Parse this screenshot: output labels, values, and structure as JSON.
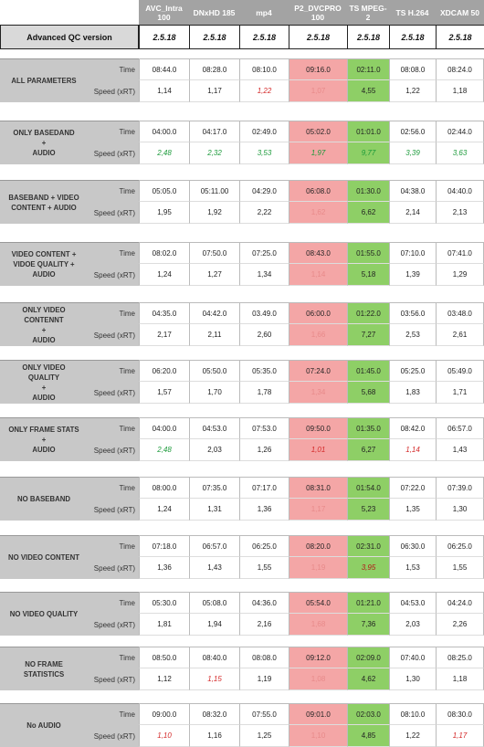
{
  "columns": [
    {
      "label_lines": [
        "AVC_Intra",
        "100"
      ]
    },
    {
      "label_lines": [
        "DNxHD 185"
      ]
    },
    {
      "label_lines": [
        "mp4"
      ]
    },
    {
      "label_lines": [
        "P2_DVCPRO",
        "100"
      ]
    },
    {
      "label_lines": [
        "TS MPEG-",
        "2"
      ]
    },
    {
      "label_lines": [
        "TS H.264"
      ]
    },
    {
      "label_lines": [
        "XDCAM 50"
      ]
    }
  ],
  "qc_label": "Advanced QC version",
  "versions": [
    "2.5.18",
    "2.5.18",
    "2.5.18",
    "2.5.18",
    "2.5.18",
    "2.5.18",
    "2.5.18"
  ],
  "metric_time": "Time",
  "metric_speed": "Speed (xRT)",
  "colors": {
    "red_cell": "#f4a6a6",
    "green_cell": "#8ecf66",
    "red_text": "#d42a2a",
    "green_text": "#1b9a3a"
  },
  "groups": [
    {
      "label_lines": [
        "ALL PARAMETERS"
      ],
      "time": [
        "08:44.0",
        "08:28.0",
        "08:10.0",
        "09:16.0",
        "02:11.0",
        "08:08.0",
        "08:24.0"
      ],
      "speed": [
        "1,14",
        "1,17",
        "1,22",
        "1,07",
        "4,55",
        "1,22",
        "1,18"
      ],
      "speed_text": [
        "",
        "",
        "red",
        "lightred",
        "",
        "",
        ""
      ]
    },
    {
      "label_lines": [
        "ONLY BASEDAND",
        "+",
        "AUDIO"
      ],
      "time": [
        "04:00.0",
        "04:17.0",
        "02:49.0",
        "05:02.0",
        "01:01.0",
        "02:56.0",
        "02:44.0"
      ],
      "speed": [
        "2,48",
        "2,32",
        "3,53",
        "1,97",
        "9,77",
        "3,39",
        "3,63"
      ],
      "speed_text": [
        "green",
        "green",
        "green",
        "green",
        "green",
        "green",
        "green"
      ]
    },
    {
      "label_lines": [
        "BASEBAND + VIDEO",
        "CONTENT + AUDIO"
      ],
      "time": [
        "05:05.0",
        "05:11.00",
        "04:29.0",
        "06:08.0",
        "01:30.0",
        "04:38.0",
        "04:40.0"
      ],
      "speed": [
        "1,95",
        "1,92",
        "2,22",
        "1,62",
        "6,62",
        "2,14",
        "2,13"
      ],
      "speed_text": [
        "",
        "",
        "",
        "lightred",
        "",
        "",
        ""
      ]
    },
    {
      "label_lines": [
        "VIDEO CONTENT +",
        "VIDOE QUALITY +",
        "AUDIO"
      ],
      "time": [
        "08:02.0",
        "07:50.0",
        "07:25.0",
        "08:43.0",
        "01:55.0",
        "07:10.0",
        "07:41.0"
      ],
      "speed": [
        "1,24",
        "1,27",
        "1,34",
        "1,14",
        "5,18",
        "1,39",
        "1,29"
      ],
      "speed_text": [
        "",
        "",
        "",
        "lightred",
        "",
        "",
        ""
      ]
    },
    {
      "label_lines": [
        "ONLY VIDEO",
        "CONTENNT",
        "+",
        "AUDIO"
      ],
      "time": [
        "04:35.0",
        "04:42.0",
        "03.49.0",
        "06:00.0",
        "01:22.0",
        "03:56.0",
        "03:48.0"
      ],
      "speed": [
        "2,17",
        "2,11",
        "2,60",
        "1,66",
        "7,27",
        "2,53",
        "2,61"
      ],
      "speed_text": [
        "",
        "",
        "",
        "lightred",
        "",
        "",
        ""
      ]
    },
    {
      "label_lines": [
        "ONLY VIDEO",
        "QUALITY",
        "+",
        "AUDIO"
      ],
      "time": [
        "06:20.0",
        "05:50.0",
        "05:35.0",
        "07:24.0",
        "01:45.0",
        "05:25.0",
        "05:49.0"
      ],
      "speed": [
        "1,57",
        "1,70",
        "1,78",
        "1,34",
        "5,68",
        "1,83",
        "1,71"
      ],
      "speed_text": [
        "",
        "",
        "",
        "lightred",
        "",
        "",
        ""
      ]
    },
    {
      "label_lines": [
        "ONLY FRAME STATS",
        "+",
        "AUDIO"
      ],
      "time": [
        "04:00.0",
        "04:53.0",
        "07:53.0",
        "09:50.0",
        "01:35.0",
        "08:42.0",
        "06:57.0"
      ],
      "speed": [
        "2,48",
        "2,03",
        "1,26",
        "1,01",
        "6,27",
        "1,14",
        "1,43"
      ],
      "speed_text": [
        "green",
        "",
        "",
        "red",
        "",
        "red",
        ""
      ]
    },
    {
      "label_lines": [
        "NO BASEBAND"
      ],
      "time": [
        "08:00.0",
        "07:35.0",
        "07:17.0",
        "08:31.0",
        "01:54.0",
        "07:22.0",
        "07:39.0"
      ],
      "speed": [
        "1,24",
        "1,31",
        "1,36",
        "1,17",
        "5,23",
        "1,35",
        "1,30"
      ],
      "speed_text": [
        "",
        "",
        "",
        "lightred",
        "",
        "",
        ""
      ]
    },
    {
      "label_lines": [
        "NO VIDEO CONTENT"
      ],
      "time": [
        "07:18.0",
        "06:57.0",
        "06:25.0",
        "08:20.0",
        "02:31.0",
        "06:30.0",
        "06:25.0"
      ],
      "speed": [
        "1,36",
        "1,43",
        "1,55",
        "1,19",
        "3,95",
        "1,53",
        "1,55"
      ],
      "speed_text": [
        "",
        "",
        "",
        "lightred",
        "darkred",
        "",
        ""
      ]
    },
    {
      "label_lines": [
        "NO VIDEO QUALITY"
      ],
      "time": [
        "05:30.0",
        "05:08.0",
        "04:36.0",
        "05:54.0",
        "01:21.0",
        "04:53.0",
        "04:24.0"
      ],
      "speed": [
        "1,81",
        "1,94",
        "2,16",
        "1,68",
        "7,36",
        "2,03",
        "2,26"
      ],
      "speed_text": [
        "",
        "",
        "",
        "lightred",
        "",
        "",
        ""
      ]
    },
    {
      "label_lines": [
        "NO FRAME",
        "STATISTICS"
      ],
      "time": [
        "08:50.0",
        "08:40.0",
        "08:08.0",
        "09:12.0",
        "02:09.0",
        "07:40.0",
        "08:25.0"
      ],
      "speed": [
        "1,12",
        "1,15",
        "1,19",
        "1,08",
        "4,62",
        "1,30",
        "1,18"
      ],
      "speed_text": [
        "",
        "red",
        "",
        "lightred",
        "",
        "",
        ""
      ]
    },
    {
      "label_lines": [
        "No AUDIO"
      ],
      "time": [
        "09:00.0",
        "08:32.0",
        "07:55.0",
        "09:01.0",
        "02:03.0",
        "08:10.0",
        "08:30.0"
      ],
      "speed": [
        "1,10",
        "1,16",
        "1,25",
        "1,10",
        "4,85",
        "1,22",
        "1,17"
      ],
      "speed_text": [
        "red",
        "",
        "",
        "lightred",
        "",
        "",
        "red"
      ]
    }
  ]
}
